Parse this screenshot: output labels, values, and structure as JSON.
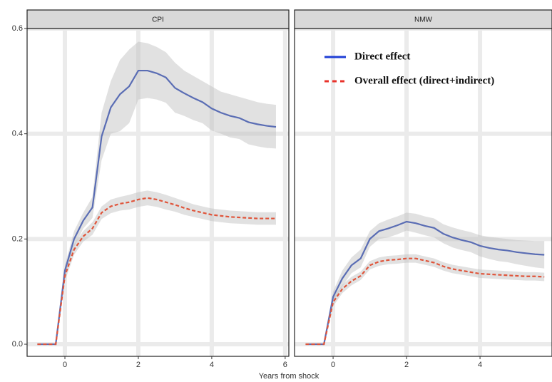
{
  "chart_data": [
    {
      "type": "line",
      "title": "CPI",
      "xlabel": "Years from shock",
      "x": [
        -0.75,
        -0.25,
        0,
        0.25,
        0.5,
        0.75,
        1,
        1.25,
        1.5,
        1.75,
        2,
        2.25,
        2.5,
        2.75,
        3,
        3.25,
        3.5,
        3.75,
        4,
        4.25,
        4.5,
        4.75,
        5,
        5.25,
        5.5,
        5.75
      ],
      "series": [
        {
          "color": "#5a6db4",
          "dashed": false,
          "values": [
            0,
            0,
            0.14,
            0.2,
            0.235,
            0.26,
            0.395,
            0.45,
            0.475,
            0.49,
            0.52,
            0.52,
            0.515,
            0.507,
            0.487,
            0.477,
            0.468,
            0.46,
            0.448,
            0.44,
            0.434,
            0.43,
            0.422,
            0.418,
            0.415,
            0.413
          ],
          "upper": [
            0,
            0,
            0.15,
            0.215,
            0.25,
            0.28,
            0.44,
            0.5,
            0.54,
            0.56,
            0.575,
            0.572,
            0.565,
            0.555,
            0.535,
            0.52,
            0.51,
            0.5,
            0.49,
            0.48,
            0.475,
            0.47,
            0.465,
            0.46,
            0.457,
            0.455
          ],
          "lower": [
            0,
            0,
            0.13,
            0.185,
            0.22,
            0.24,
            0.35,
            0.4,
            0.405,
            0.42,
            0.465,
            0.468,
            0.465,
            0.459,
            0.44,
            0.434,
            0.426,
            0.42,
            0.406,
            0.4,
            0.393,
            0.39,
            0.38,
            0.376,
            0.373,
            0.372
          ]
        },
        {
          "color": "#e0553b",
          "dashed": true,
          "values": [
            0,
            0,
            0.13,
            0.18,
            0.205,
            0.22,
            0.25,
            0.262,
            0.267,
            0.27,
            0.275,
            0.278,
            0.275,
            0.27,
            0.265,
            0.259,
            0.254,
            0.25,
            0.246,
            0.244,
            0.242,
            0.241,
            0.24,
            0.239,
            0.239,
            0.239
          ],
          "upper": [
            0,
            0,
            0.14,
            0.19,
            0.215,
            0.232,
            0.262,
            0.275,
            0.28,
            0.284,
            0.289,
            0.292,
            0.289,
            0.284,
            0.278,
            0.272,
            0.266,
            0.262,
            0.258,
            0.256,
            0.254,
            0.253,
            0.252,
            0.251,
            0.251,
            0.251
          ],
          "lower": [
            0,
            0,
            0.12,
            0.17,
            0.195,
            0.208,
            0.238,
            0.249,
            0.254,
            0.256,
            0.261,
            0.264,
            0.261,
            0.256,
            0.252,
            0.246,
            0.242,
            0.238,
            0.234,
            0.232,
            0.23,
            0.229,
            0.228,
            0.227,
            0.227,
            0.227
          ]
        }
      ],
      "xlim": [
        -1.03,
        6.1
      ],
      "ylim": [
        -0.023,
        0.6
      ],
      "xticks": [
        0,
        2,
        4,
        6
      ],
      "yticks": [
        {
          "value": 0,
          "label": "0.0"
        },
        0.2,
        0.4,
        0.6
      ],
      "grid": true
    },
    {
      "type": "line",
      "title": "NMW",
      "legend": "top",
      "x": [
        -0.75,
        -0.25,
        0,
        0.25,
        0.5,
        0.75,
        1,
        1.25,
        1.5,
        1.75,
        2,
        2.25,
        2.5,
        2.75,
        3,
        3.25,
        3.5,
        3.75,
        4,
        4.25,
        4.5,
        4.75,
        5,
        5.25,
        5.5,
        5.75
      ],
      "series": [
        {
          "name": "Direct effect",
          "color": "#5a6db4",
          "legend_color": "#1f3fd6",
          "dashed": false,
          "values": [
            0,
            0,
            0.09,
            0.125,
            0.15,
            0.163,
            0.2,
            0.215,
            0.22,
            0.226,
            0.233,
            0.23,
            0.225,
            0.221,
            0.21,
            0.203,
            0.198,
            0.194,
            0.187,
            0.183,
            0.18,
            0.178,
            0.175,
            0.173,
            0.171,
            0.17
          ],
          "upper": [
            0,
            0,
            0.1,
            0.14,
            0.165,
            0.18,
            0.215,
            0.23,
            0.237,
            0.243,
            0.25,
            0.248,
            0.243,
            0.239,
            0.228,
            0.222,
            0.217,
            0.213,
            0.207,
            0.204,
            0.202,
            0.2,
            0.198,
            0.197,
            0.196,
            0.196
          ],
          "lower": [
            0,
            0,
            0.08,
            0.11,
            0.135,
            0.146,
            0.185,
            0.2,
            0.203,
            0.209,
            0.216,
            0.212,
            0.207,
            0.203,
            0.192,
            0.184,
            0.179,
            0.175,
            0.167,
            0.162,
            0.158,
            0.156,
            0.152,
            0.149,
            0.146,
            0.144
          ]
        },
        {
          "name": "Overall effect (direct+indirect)",
          "color": "#e0553b",
          "legend_color": "#e8322a",
          "dashed": true,
          "values": [
            0,
            0,
            0.08,
            0.105,
            0.12,
            0.13,
            0.15,
            0.157,
            0.16,
            0.161,
            0.163,
            0.163,
            0.159,
            0.155,
            0.148,
            0.143,
            0.14,
            0.137,
            0.134,
            0.133,
            0.132,
            0.131,
            0.13,
            0.129,
            0.129,
            0.128
          ],
          "upper": [
            0,
            0,
            0.088,
            0.113,
            0.128,
            0.138,
            0.158,
            0.165,
            0.168,
            0.169,
            0.171,
            0.171,
            0.167,
            0.163,
            0.156,
            0.151,
            0.148,
            0.145,
            0.142,
            0.141,
            0.14,
            0.139,
            0.138,
            0.137,
            0.137,
            0.136
          ],
          "lower": [
            0,
            0,
            0.072,
            0.097,
            0.112,
            0.122,
            0.142,
            0.149,
            0.152,
            0.153,
            0.155,
            0.155,
            0.151,
            0.147,
            0.14,
            0.135,
            0.132,
            0.129,
            0.126,
            0.125,
            0.124,
            0.123,
            0.122,
            0.121,
            0.121,
            0.12
          ]
        }
      ],
      "xlim": [
        -1.05,
        5.96
      ],
      "ylim": [
        -0.023,
        0.6
      ],
      "xticks": [
        0,
        2,
        4
      ],
      "yticks": [
        0,
        0.2,
        0.4,
        0.6
      ],
      "grid": true
    }
  ]
}
